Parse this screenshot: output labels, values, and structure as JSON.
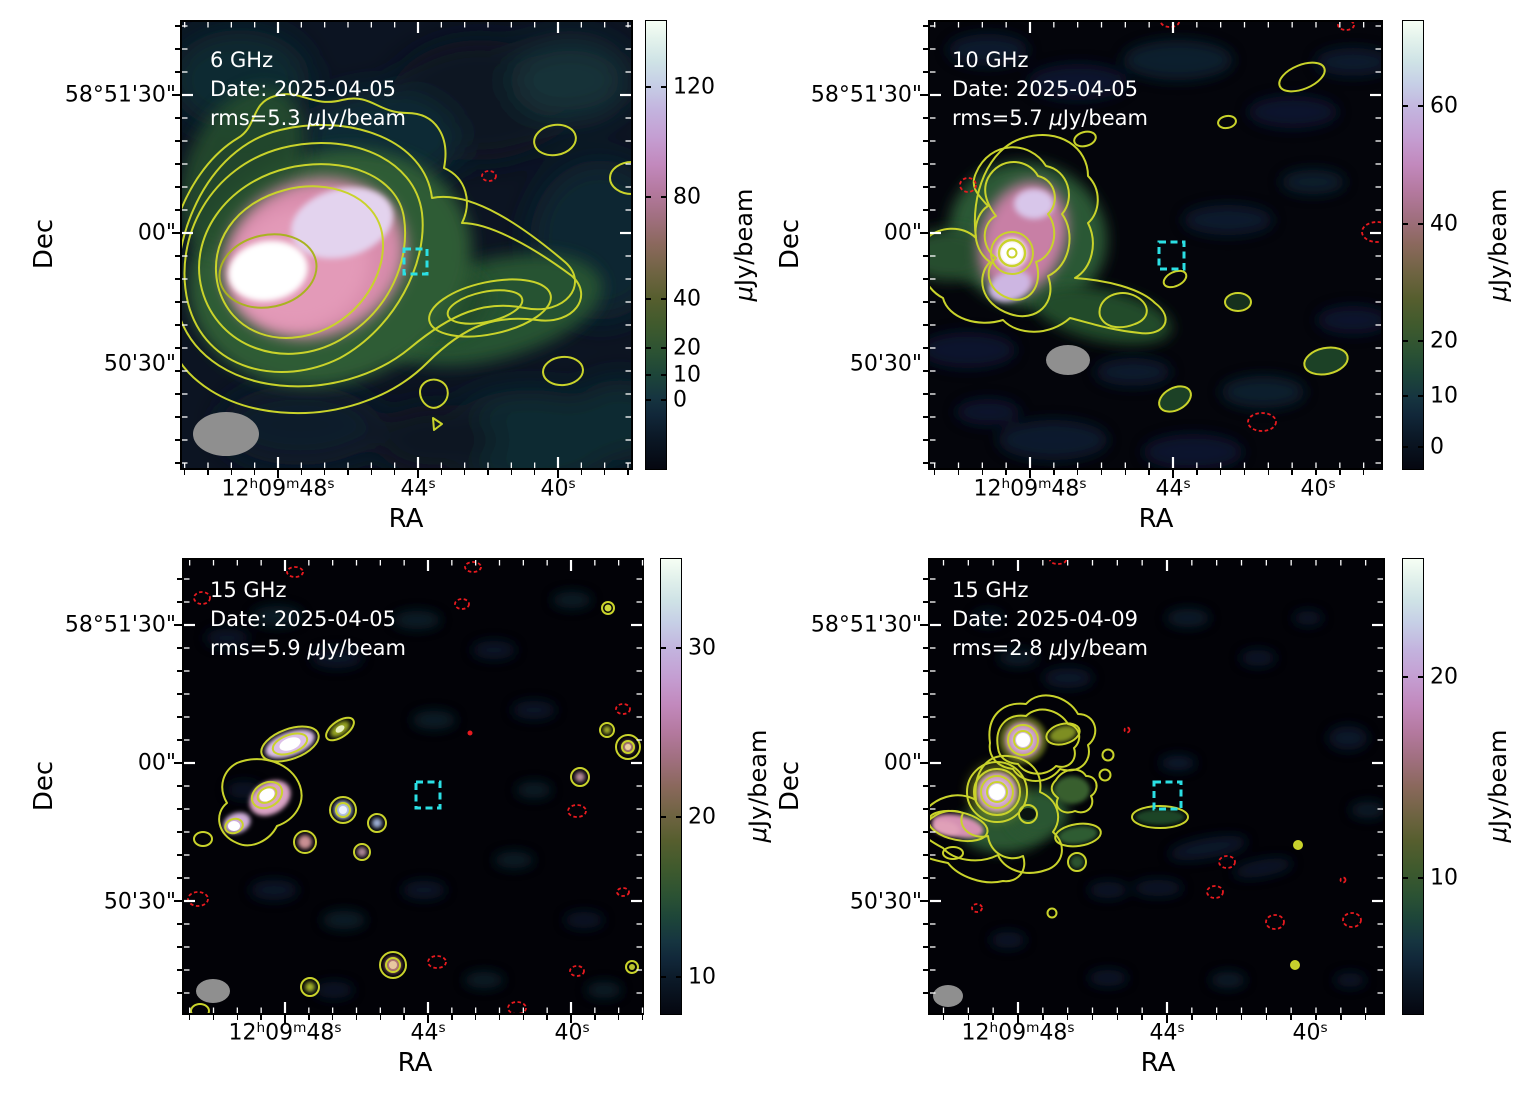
{
  "figure": {
    "axes": {
      "x_label": "RA",
      "y_label": "Dec",
      "ra_tick_1": {
        "v1": "12",
        "u1": "h",
        "v2": "09",
        "u2": "m",
        "v3": "48",
        "u3": "s"
      },
      "ra_tick_2": {
        "v": "44",
        "u": "s"
      },
      "ra_tick_3": {
        "v": "40",
        "u": "s"
      },
      "dec_ticks": [
        "58°51'30\"",
        "00\"",
        "50'30\""
      ]
    },
    "units": {
      "mu": "μ",
      "jy_beam": "Jy/beam"
    },
    "colors": {
      "positive_contour": "#c9d32b",
      "negative_contour": "#e71a1f",
      "target_box": "#2be0e4",
      "beam": "#8f8f8f"
    },
    "panels": [
      {
        "freq": "6 GHz",
        "date": "Date: 2025-04-05",
        "rms_prefix": "rms=5.3 ",
        "cb_ticks": [
          "120",
          "80",
          "40",
          "20",
          "10",
          "0"
        ]
      },
      {
        "freq": "10 GHz",
        "date": "Date: 2025-04-05",
        "rms_prefix": "rms=5.7 ",
        "cb_ticks": [
          "60",
          "40",
          "20",
          "10",
          "0"
        ]
      },
      {
        "freq": "15 GHz",
        "date": "Date: 2025-04-05",
        "rms_prefix": "rms=5.9 ",
        "cb_ticks": [
          "30",
          "20",
          "10"
        ]
      },
      {
        "freq": "15 GHz",
        "date": "Date: 2025-04-09",
        "rms_prefix": "rms=2.8 ",
        "cb_ticks": [
          "20",
          "10"
        ]
      }
    ]
  },
  "chart_data": [
    {
      "type": "heatmap",
      "title": "6 GHz",
      "annotations": {
        "frequency": "6 GHz",
        "date": "2025-04-05",
        "rms_uJy_per_beam": 5.3
      },
      "colorbar": {
        "label": "μJy/beam",
        "ticks": [
          120,
          80,
          40,
          20,
          10,
          0
        ],
        "scale": "nonlinear (asinh-like)",
        "colormap": "cubehelix"
      },
      "x_axis": {
        "label": "RA",
        "ticks": [
          "12h09m48s",
          "44s",
          "40s"
        ]
      },
      "y_axis": {
        "label": "Dec",
        "ticks": [
          "58°51'30\"",
          "00\"",
          "50'30\""
        ]
      },
      "overlays": [
        "yellow solid positive contours",
        "red dashed negative contour",
        "cyan dashed square aperture",
        "grey beam ellipse bottom-left"
      ],
      "content": "Bright extended source with white core east of center, pink halo, green envelope and a tail extending west; isolated contour islands north-west and south"
    },
    {
      "type": "heatmap",
      "title": "10 GHz",
      "annotations": {
        "frequency": "10 GHz",
        "date": "2025-04-05",
        "rms_uJy_per_beam": 5.7
      },
      "colorbar": {
        "label": "μJy/beam",
        "ticks": [
          60,
          40,
          20,
          10,
          0
        ],
        "scale": "nonlinear (asinh-like)",
        "colormap": "cubehelix"
      },
      "x_axis": {
        "label": "RA",
        "ticks": [
          "12h09m48s",
          "44s",
          "40s"
        ]
      },
      "y_axis": {
        "label": "Dec",
        "ticks": [
          "58°51'30\"",
          "00\"",
          "50'30\""
        ]
      },
      "overlays": [
        "yellow solid positive contours",
        "red dashed negative contours",
        "cyan dashed square aperture",
        "grey beam ellipse"
      ],
      "content": "Compact bright core with ring contour, pink elongated cluster NE-SW, short green tail east-southeast, scattered faint islands"
    },
    {
      "type": "heatmap",
      "title": "15 GHz (epoch 1)",
      "annotations": {
        "frequency": "15 GHz",
        "date": "2025-04-05",
        "rms_uJy_per_beam": 5.9
      },
      "colorbar": {
        "label": "μJy/beam",
        "ticks": [
          30,
          20,
          10
        ],
        "scale": "nonlinear (asinh-like)",
        "colormap": "cubehelix"
      },
      "x_axis": {
        "label": "RA",
        "ticks": [
          "12h09m48s",
          "44s",
          "40s"
        ]
      },
      "y_axis": {
        "label": "Dec",
        "ticks": [
          "58°51'30\"",
          "00\"",
          "50'30\""
        ]
      },
      "overlays": [
        "yellow solid positive contours",
        "red dashed negative contours",
        "cyan dashed square aperture",
        "grey beam ellipse"
      ],
      "content": "Emission broken into a chain of compact knots on the east side; many faint blobs and small negative (red dashed) islands across the field"
    },
    {
      "type": "heatmap",
      "title": "15 GHz (epoch 2)",
      "annotations": {
        "frequency": "15 GHz",
        "date": "2025-04-09",
        "rms_uJy_per_beam": 2.8
      },
      "colorbar": {
        "label": "μJy/beam",
        "ticks": [
          20,
          10
        ],
        "scale": "nonlinear (asinh-like)",
        "colormap": "cubehelix"
      },
      "x_axis": {
        "label": "RA",
        "ticks": [
          "12h09m48s",
          "44s",
          "40s"
        ]
      },
      "y_axis": {
        "label": "Dec",
        "ticks": [
          "58°51'30\"",
          "00\"",
          "50'30\""
        ]
      },
      "overlays": [
        "yellow solid positive contours",
        "red dashed negative contours",
        "cyan dashed square aperture",
        "grey beam ellipse"
      ],
      "content": "Two bright compact knots with concentric contours north-east, pink extended tail to the south-west, several green contour islands, scattered red dashed negatives"
    }
  ]
}
